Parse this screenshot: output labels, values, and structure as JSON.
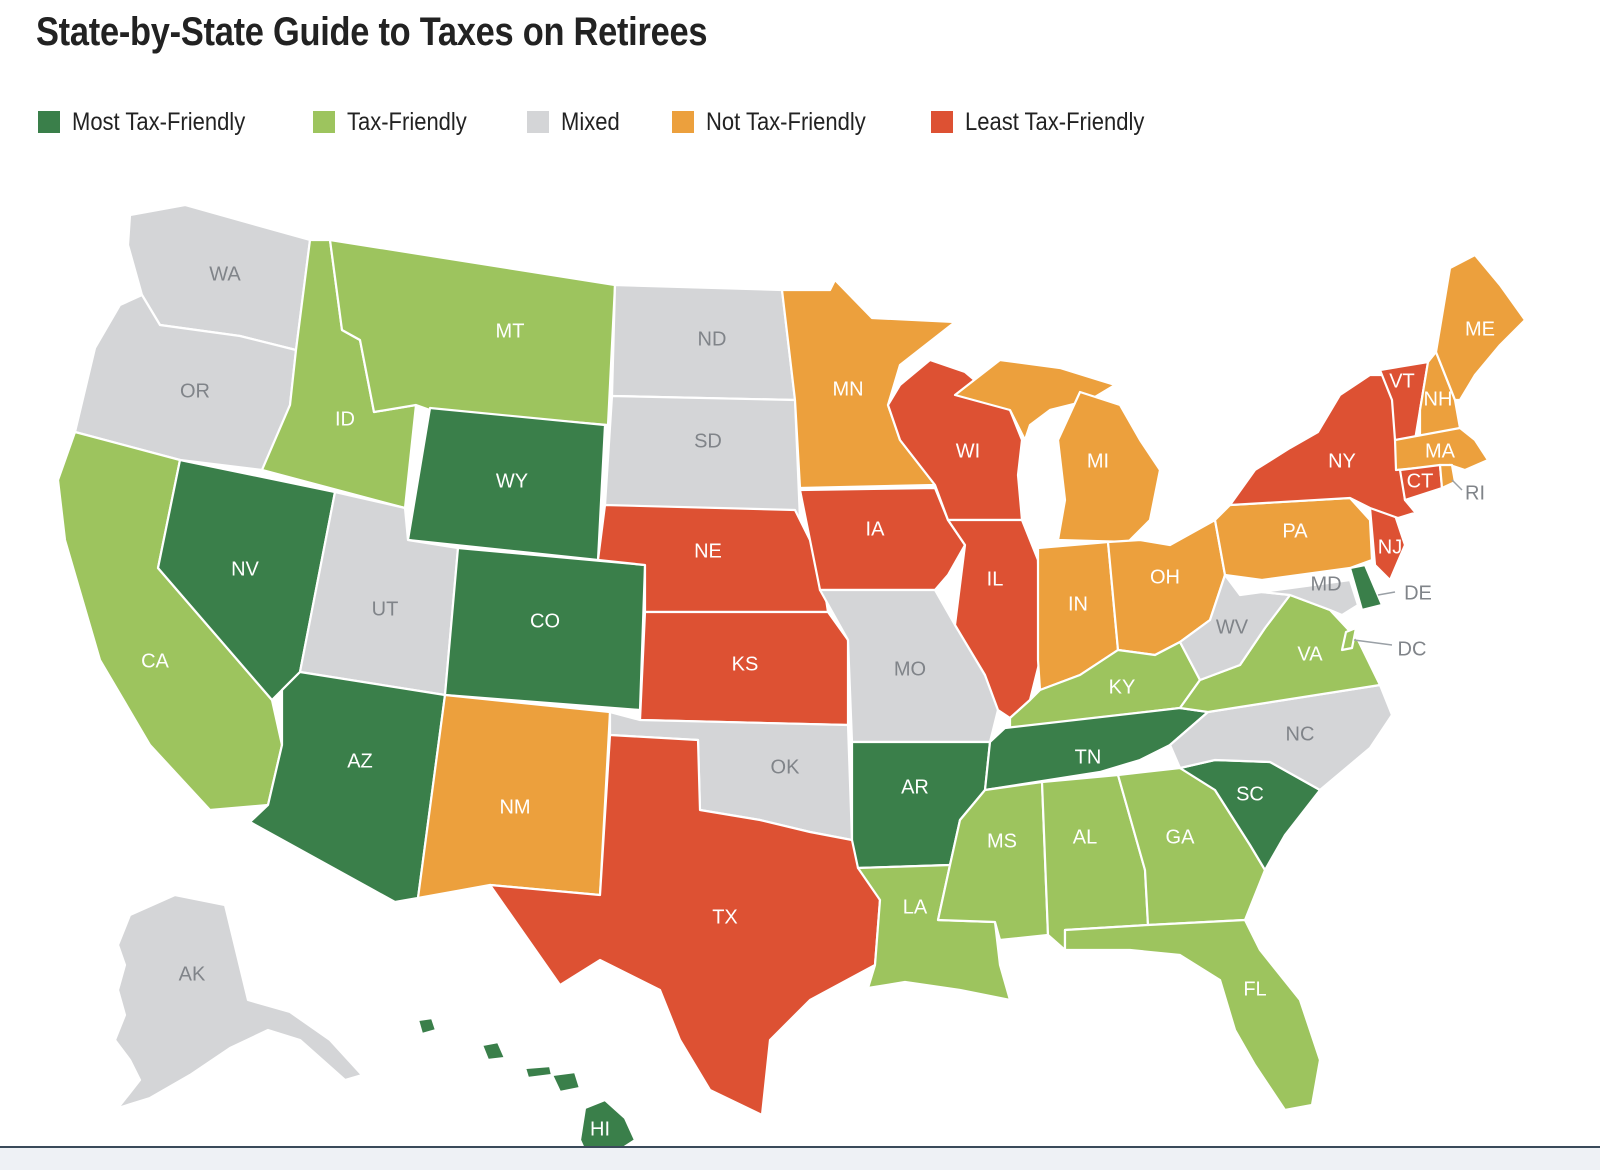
{
  "title": "State-by-State Guide to Taxes on Retirees",
  "categories": {
    "most": {
      "label": "Most Tax-Friendly",
      "color": "#3a7f4a",
      "text": "#ffffff"
    },
    "friendly": {
      "label": "Tax-Friendly",
      "color": "#9dc45e",
      "text": "#ffffff"
    },
    "mixed": {
      "label": "Mixed",
      "color": "#d4d5d7",
      "text": "#808489"
    },
    "not": {
      "label": "Not Tax-Friendly",
      "color": "#eca03d",
      "text": "#ffffff"
    },
    "least": {
      "label": "Least Tax-Friendly",
      "color": "#dd5133",
      "text": "#ffffff"
    }
  },
  "legend_order": [
    "most",
    "friendly",
    "mixed",
    "not",
    "least"
  ],
  "states": [
    {
      "code": "WA",
      "category": "mixed"
    },
    {
      "code": "OR",
      "category": "mixed"
    },
    {
      "code": "CA",
      "category": "friendly"
    },
    {
      "code": "ID",
      "category": "friendly"
    },
    {
      "code": "NV",
      "category": "most"
    },
    {
      "code": "MT",
      "category": "friendly"
    },
    {
      "code": "WY",
      "category": "most"
    },
    {
      "code": "UT",
      "category": "mixed"
    },
    {
      "code": "AZ",
      "category": "most"
    },
    {
      "code": "CO",
      "category": "most"
    },
    {
      "code": "NM",
      "category": "not"
    },
    {
      "code": "ND",
      "category": "mixed"
    },
    {
      "code": "SD",
      "category": "mixed"
    },
    {
      "code": "NE",
      "category": "least"
    },
    {
      "code": "KS",
      "category": "least"
    },
    {
      "code": "OK",
      "category": "mixed"
    },
    {
      "code": "TX",
      "category": "least"
    },
    {
      "code": "MN",
      "category": "not"
    },
    {
      "code": "IA",
      "category": "least"
    },
    {
      "code": "MO",
      "category": "mixed"
    },
    {
      "code": "AR",
      "category": "most"
    },
    {
      "code": "LA",
      "category": "friendly"
    },
    {
      "code": "WI",
      "category": "least"
    },
    {
      "code": "IL",
      "category": "least"
    },
    {
      "code": "MI",
      "category": "not"
    },
    {
      "code": "IN",
      "category": "not"
    },
    {
      "code": "OH",
      "category": "not"
    },
    {
      "code": "KY",
      "category": "friendly"
    },
    {
      "code": "TN",
      "category": "most"
    },
    {
      "code": "MS",
      "category": "friendly"
    },
    {
      "code": "AL",
      "category": "friendly"
    },
    {
      "code": "GA",
      "category": "friendly"
    },
    {
      "code": "FL",
      "category": "friendly"
    },
    {
      "code": "SC",
      "category": "most"
    },
    {
      "code": "NC",
      "category": "mixed"
    },
    {
      "code": "VA",
      "category": "friendly"
    },
    {
      "code": "WV",
      "category": "mixed"
    },
    {
      "code": "MD",
      "category": "mixed"
    },
    {
      "code": "DE",
      "category": "most"
    },
    {
      "code": "DC",
      "category": "friendly"
    },
    {
      "code": "PA",
      "category": "not"
    },
    {
      "code": "NJ",
      "category": "least"
    },
    {
      "code": "NY",
      "category": "least"
    },
    {
      "code": "CT",
      "category": "least"
    },
    {
      "code": "RI",
      "category": "not"
    },
    {
      "code": "MA",
      "category": "not"
    },
    {
      "code": "VT",
      "category": "least"
    },
    {
      "code": "NH",
      "category": "not"
    },
    {
      "code": "ME",
      "category": "not"
    },
    {
      "code": "AK",
      "category": "mixed"
    },
    {
      "code": "HI",
      "category": "most"
    }
  ]
}
